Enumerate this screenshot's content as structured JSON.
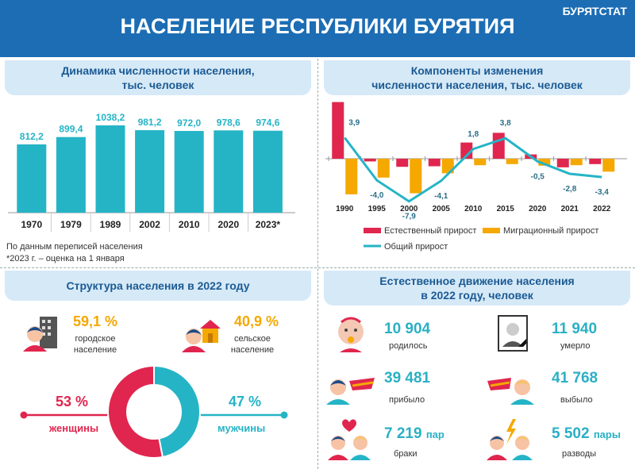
{
  "header": {
    "title": "НАСЕЛЕНИЕ РЕСПУБЛИКИ БУРЯТИЯ",
    "brand": "БУРЯТСТАТ"
  },
  "panel1": {
    "title_line1": "Динамика численности населения,",
    "title_line2": "тыс. человек",
    "note1": "По данным переписей населения",
    "note2": "*2023 г. – оценка на 1 января"
  },
  "panel2": {
    "title_line1": "Компоненты изменения",
    "title_line2": "численности населения, тыс. человек"
  },
  "panel3": {
    "title": "Структура населения в 2022 году",
    "urban_pct": "59,1 %",
    "urban_label1": "городское",
    "urban_label2": "население",
    "rural_pct": "40,9 %",
    "rural_label1": "сельское",
    "rural_label2": "население",
    "women_pct": "53 %",
    "women_label": "женщины",
    "men_pct": "47 %",
    "men_label": "мужчины"
  },
  "panel4": {
    "title_line1": "Естественное движение населения",
    "title_line2": "в 2022 году, человек",
    "born_val": "10 904",
    "born_lbl": "родилось",
    "died_val": "11 940",
    "died_lbl": "умерло",
    "arrived_val": "39 481",
    "arrived_lbl": "прибыло",
    "left_val": "41 768",
    "left_lbl": "выбыло",
    "marriage_val": "7 219",
    "marriage_unit": "пар",
    "marriage_lbl": "браки",
    "divorce_val": "5 502",
    "divorce_unit": "пары",
    "divorce_lbl": "разводы"
  },
  "colors": {
    "teal": "#25b4c6",
    "red": "#e0264e",
    "orange": "#f5a800",
    "blue": "#1c6db4"
  },
  "chart_data": [
    {
      "type": "bar",
      "title": "Динамика численности населения, тыс. человек",
      "categories": [
        "1970",
        "1979",
        "1989",
        "2002",
        "2010",
        "2020",
        "2023*"
      ],
      "values": [
        812.2,
        899.4,
        1038.2,
        981.2,
        972.0,
        978.6,
        974.6
      ],
      "labels": [
        "812,2",
        "899,4",
        "1038,2",
        "981,2",
        "972,0",
        "978,6",
        "974,6"
      ]
    },
    {
      "type": "bar",
      "title": "Компоненты изменения численности населения, тыс. человек",
      "categories": [
        "1990",
        "1995",
        "2000",
        "2005",
        "2010",
        "2015",
        "2020",
        "2021",
        "2022"
      ],
      "series": [
        {
          "name": "Естественный прирост",
          "values": [
            10.5,
            -0.5,
            -1.5,
            -1.4,
            3.0,
            4.8,
            0.8,
            -1.6,
            -1.0
          ]
        },
        {
          "name": "Миграционный прирост",
          "values": [
            -6.6,
            -3.5,
            -6.4,
            -2.7,
            -1.2,
            -1.0,
            -1.3,
            -1.2,
            -2.4
          ]
        },
        {
          "name": "Общий прирост",
          "values": [
            3.9,
            -4.0,
            -7.9,
            -4.1,
            1.8,
            3.8,
            -0.5,
            -2.8,
            -3.4
          ],
          "labels": [
            "3,9",
            "-4,0",
            "-7,9",
            "-4,1",
            "1,8",
            "3,8",
            "-0,5",
            "-2,8",
            "-3,4"
          ]
        }
      ]
    },
    {
      "type": "pie",
      "title": "",
      "categories": [
        "женщины",
        "мужчины"
      ],
      "values": [
        53,
        47
      ]
    }
  ]
}
